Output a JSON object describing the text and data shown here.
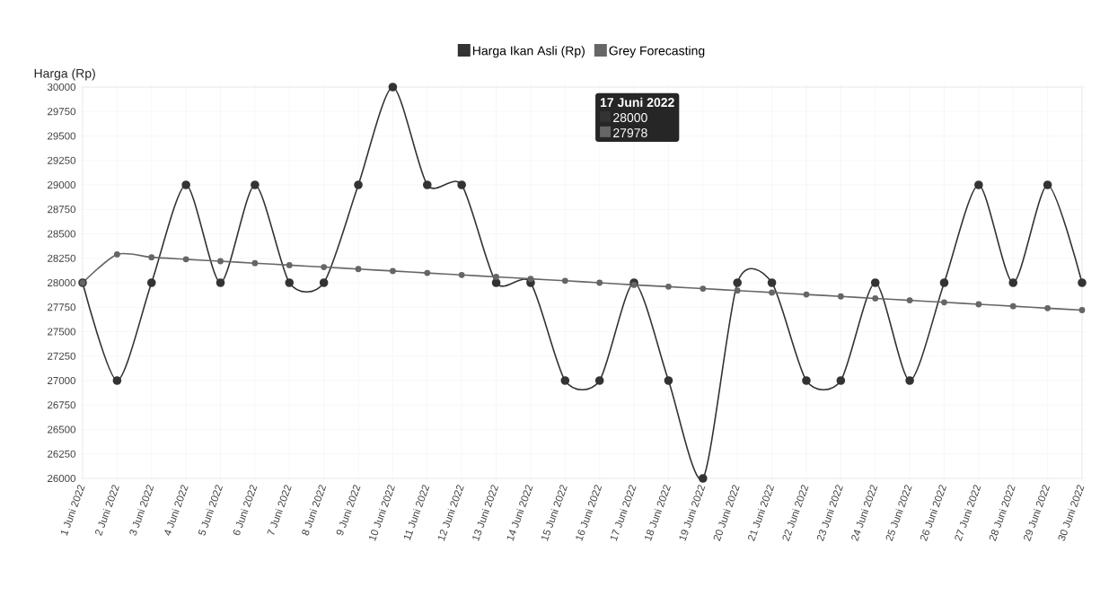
{
  "chart_data": {
    "type": "line",
    "ylabel": "Harga (Rp)",
    "categories": [
      "1 Juni 2022",
      "2 Juni 2022",
      "3 Juni 2022",
      "4 Juni 2022",
      "5 Juni 2022",
      "6 Juni 2022",
      "7 Juni 2022",
      "8 Juni 2022",
      "9 Juni 2022",
      "10 Juni 2022",
      "11 Juni 2022",
      "12 Juni 2022",
      "13 Juni 2022",
      "14 Juni 2022",
      "15 Juni 2022",
      "16 Juni 2022",
      "17 Juni 2022",
      "18 Juni 2022",
      "19 Juni 2022",
      "20 Juni 2022",
      "21 Juni 2022",
      "22 Juni 2022",
      "23 Juni 2022",
      "24 Juni 2022",
      "25 Juni 2022",
      "26 Juni 2022",
      "27 Juni 2022",
      "28 Juni 2022",
      "29 Juni 2022",
      "30 Juni 2022"
    ],
    "series": [
      {
        "name": "Harga Ikan Asli (Rp)",
        "color": "#333333",
        "values": [
          28000,
          27000,
          28000,
          29000,
          28000,
          29000,
          28000,
          28000,
          29000,
          30000,
          29000,
          29000,
          28000,
          28000,
          27000,
          27000,
          28000,
          27000,
          26000,
          28000,
          28000,
          27000,
          27000,
          28000,
          27000,
          28000,
          29000,
          28000,
          29000,
          28000
        ]
      },
      {
        "name": "Grey Forecasting",
        "color": "#666666",
        "values": [
          28000,
          28290,
          28260,
          28240,
          28220,
          28200,
          28180,
          28160,
          28140,
          28120,
          28100,
          28080,
          28060,
          28040,
          28020,
          28000,
          27978,
          27960,
          27940,
          27920,
          27900,
          27880,
          27860,
          27840,
          27820,
          27800,
          27780,
          27760,
          27740,
          27720
        ]
      }
    ],
    "ylim": [
      26000,
      30000
    ],
    "yticks": [
      26000,
      26250,
      26500,
      26750,
      27000,
      27250,
      27500,
      27750,
      28000,
      28250,
      28500,
      28750,
      29000,
      29250,
      29500,
      29750,
      30000
    ],
    "grid": true,
    "legend": "top",
    "marker": "circle",
    "line_style": "solid",
    "annotations": [
      "17 Juni 2022",
      "28000",
      "27978"
    ]
  }
}
